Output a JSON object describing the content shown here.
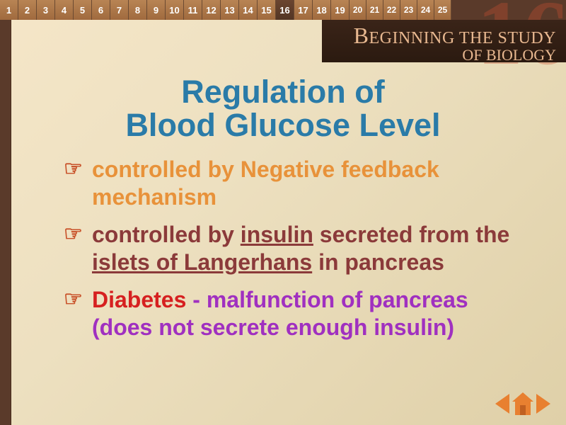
{
  "nav": {
    "numbers": [
      "1",
      "2",
      "3",
      "4",
      "5",
      "6",
      "7",
      "8",
      "9",
      "10",
      "11",
      "12",
      "13",
      "14",
      "15",
      "16",
      "17",
      "18",
      "19",
      "20",
      "21",
      "22",
      "23",
      "24",
      "25"
    ],
    "current_index": 15
  },
  "decoration": {
    "big_number": "16",
    "big_number_color": "#c85032"
  },
  "banner": {
    "line1_cap": "B",
    "line1_rest": "EGINNING THE STUDY",
    "line2": "OF BIOLOGY",
    "text_color": "#e8b890",
    "bg_color": "#2b1a10"
  },
  "title": {
    "line1": "Regulation of",
    "line2": "Blood Glucose Level",
    "color": "#2a7ba8",
    "fontsize": 45
  },
  "bullets": {
    "icon_glyph": "☞",
    "icon_color": "#c85028",
    "fontsize": 32,
    "items": [
      {
        "segments": [
          {
            "text": "controlled by Negative feedback mechanism",
            "color": "#e8923a"
          }
        ]
      },
      {
        "segments": [
          {
            "text": "controlled by ",
            "color": "#8b3a3a"
          },
          {
            "text": "insulin",
            "color": "#8b3a3a",
            "underline": true
          },
          {
            "text": " secreted from the ",
            "color": "#8b3a3a"
          },
          {
            "text": "islets of Langerhans",
            "color": "#8b3a3a",
            "underline": true
          },
          {
            "text": " in pancreas",
            "color": "#8b3a3a"
          }
        ]
      },
      {
        "segments": [
          {
            "text": "Diabetes",
            "color": "#d62020"
          },
          {
            "text": " - malfunction of pancreas (does not secrete enough insulin)",
            "color": "#a030c0"
          }
        ]
      }
    ]
  },
  "controls": {
    "arrow_color": "#e88030",
    "home_color": "#e88030"
  },
  "colors": {
    "bg_start": "#f5e6c8",
    "bg_end": "#dfd0a8",
    "nav_tile": "#a06a3e",
    "nav_current": "#533524",
    "side_strip": "#5a3a2a"
  }
}
